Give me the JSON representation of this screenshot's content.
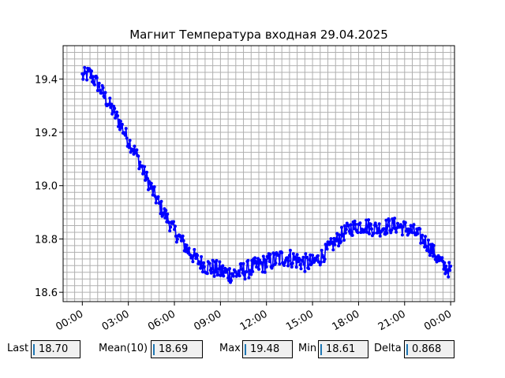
{
  "chart_data": {
    "type": "line",
    "title": "Магнит Температура входная 29.04.2025",
    "xlabel": "",
    "ylabel": "",
    "x_unit": "hours since 00:00 (29.04.2025)",
    "xlim": [
      -1.25,
      24.25
    ],
    "ylim": [
      18.565,
      19.525
    ],
    "x_ticks": [
      0,
      3,
      6,
      9,
      12,
      15,
      18,
      21,
      24
    ],
    "x_tick_labels": [
      "00:00",
      "03:00",
      "06:00",
      "09:00",
      "12:00",
      "15:00",
      "18:00",
      "21:00",
      "00:00"
    ],
    "y_ticks": [
      18.6,
      18.8,
      19.0,
      19.2,
      19.4
    ],
    "y_tick_labels": [
      "18.6",
      "18.8",
      "19.0",
      "19.2",
      "19.4"
    ],
    "grid": true,
    "color": "#0000ff",
    "series": [
      {
        "x": [
          0,
          0.5,
          1,
          1.5,
          2,
          2.5,
          3,
          3.5,
          4,
          4.5,
          5,
          5.5,
          6,
          6.5,
          7,
          7.5,
          8,
          8.5,
          9,
          9.5,
          10,
          10.5,
          11,
          11.5,
          12,
          12.5,
          13,
          13.5,
          14,
          14.5,
          15,
          15.5,
          16,
          16.5,
          17,
          17.5,
          18,
          18.5,
          19,
          19.5,
          20,
          20.5,
          21,
          21.5,
          22,
          22.5,
          23,
          23.5,
          24
        ],
        "y": [
          19.41,
          19.42,
          19.38,
          19.33,
          19.28,
          19.23,
          19.17,
          19.12,
          19.05,
          18.99,
          18.93,
          18.88,
          18.83,
          18.79,
          18.75,
          18.72,
          18.7,
          18.69,
          18.68,
          18.67,
          18.67,
          18.68,
          18.69,
          18.7,
          18.71,
          18.72,
          18.73,
          18.73,
          18.72,
          18.71,
          18.71,
          18.73,
          18.76,
          18.79,
          18.82,
          18.84,
          18.85,
          18.85,
          18.84,
          18.84,
          18.85,
          18.85,
          18.84,
          18.83,
          18.81,
          18.78,
          18.74,
          18.7,
          18.68
        ]
      }
    ]
  },
  "stats": [
    {
      "label": "Last",
      "value": "18.70"
    },
    {
      "label": "Mean(10)",
      "value": "18.69"
    },
    {
      "label": "Max",
      "value": "19.48"
    },
    {
      "label": "Min",
      "value": "18.61"
    },
    {
      "label": "Delta",
      "value": "0.868"
    }
  ]
}
